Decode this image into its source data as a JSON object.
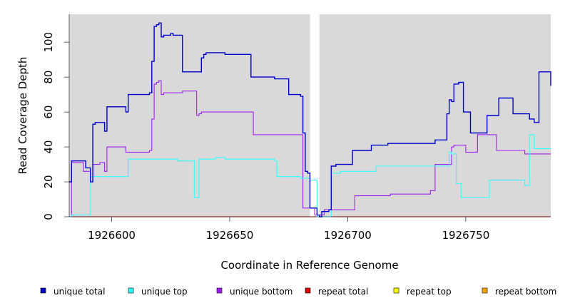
{
  "chart_data": {
    "type": "line",
    "title": "",
    "xlabel": "Coordinate in Reference Genome",
    "ylabel": "Read Coverage Depth",
    "xlim": [
      1926582,
      1926786
    ],
    "ylim": [
      0,
      116
    ],
    "x_ticks": [
      1926600,
      1926650,
      1926700,
      1926750
    ],
    "y_ticks": [
      0,
      20,
      40,
      60,
      80,
      100
    ],
    "grid": false,
    "background": "#d9d9d9",
    "gap_region": [
      1926684,
      1926688
    ],
    "legend_position": "bottom",
    "series": [
      {
        "name": "unique total",
        "color": "#0000cc",
        "step": true,
        "x": [
          1926582,
          1926583,
          1926589,
          1926591,
          1926592,
          1926593,
          1926597,
          1926598,
          1926606,
          1926607,
          1926616,
          1926617,
          1926618,
          1926619,
          1926620,
          1926621,
          1926622,
          1926625,
          1926626,
          1926630,
          1926638,
          1926639,
          1926640,
          1926648,
          1926652,
          1926659,
          1926664,
          1926668,
          1926669,
          1926675,
          1926680,
          1926681,
          1926682,
          1926683,
          1926684,
          1926687,
          1926688,
          1926689,
          1926692,
          1926693,
          1926695,
          1926702,
          1926710,
          1926717,
          1926728,
          1926735,
          1926737,
          1926742,
          1926743,
          1926744,
          1926745,
          1926747,
          1926749,
          1926752,
          1926759,
          1926764,
          1926770,
          1926772,
          1926777,
          1926779,
          1926781,
          1926786
        ],
        "y": [
          20,
          32,
          28,
          20,
          53,
          54,
          49,
          63,
          60,
          70,
          71,
          89,
          109,
          110,
          111,
          103,
          104,
          105,
          104,
          83,
          91,
          93,
          94,
          93,
          93,
          80,
          80,
          80,
          79,
          70,
          69,
          48,
          26,
          25,
          5,
          1,
          0,
          3,
          4,
          29,
          30,
          38,
          41,
          42,
          42,
          42,
          44,
          59,
          67,
          66,
          76,
          77,
          60,
          48,
          58,
          68,
          59,
          59,
          56,
          54,
          83,
          75
        ]
      },
      {
        "name": "unique top",
        "color": "#33ffff",
        "step": true,
        "x": [
          1926582,
          1926583,
          1926590,
          1926591,
          1926598,
          1926606,
          1926607,
          1926610,
          1926620,
          1926625,
          1926626,
          1926628,
          1926635,
          1926636,
          1926637,
          1926644,
          1926648,
          1926660,
          1926667,
          1926669,
          1926670,
          1926675,
          1926680,
          1926684,
          1926687,
          1926688,
          1926692,
          1926693,
          1926697,
          1926702,
          1926712,
          1926720,
          1926730,
          1926742,
          1926743,
          1926744,
          1926746,
          1926748,
          1926758,
          1926760,
          1926763,
          1926770,
          1926775,
          1926777,
          1926779,
          1926786
        ],
        "y": [
          0,
          1,
          1,
          23,
          23,
          23,
          33,
          33,
          33,
          33,
          33,
          32,
          11,
          11,
          33,
          34,
          33,
          33,
          33,
          32,
          23,
          23,
          22,
          21,
          0,
          0,
          0,
          25,
          26,
          26,
          29,
          29,
          29,
          29,
          37,
          36,
          19,
          11,
          11,
          21,
          21,
          21,
          18,
          47,
          39,
          39
        ]
      },
      {
        "name": "unique bottom",
        "color": "#a020f0",
        "step": true,
        "x": [
          1926582,
          1926583,
          1926588,
          1926591,
          1926592,
          1926595,
          1926597,
          1926598,
          1926606,
          1926613,
          1926616,
          1926617,
          1926618,
          1926619,
          1926620,
          1926621,
          1926622,
          1926625,
          1926630,
          1926636,
          1926637,
          1926638,
          1926640,
          1926650,
          1926660,
          1926670,
          1926680,
          1926681,
          1926684,
          1926686,
          1926688,
          1926690,
          1926703,
          1926710,
          1926718,
          1926725,
          1926735,
          1926737,
          1926742,
          1926744,
          1926745,
          1926748,
          1926750,
          1926755,
          1926763,
          1926770,
          1926775,
          1926780,
          1926786
        ],
        "y": [
          0,
          31,
          26,
          20,
          30,
          31,
          26,
          40,
          37,
          37,
          38,
          56,
          76,
          77,
          78,
          70,
          71,
          71,
          72,
          58,
          59,
          60,
          60,
          60,
          47,
          47,
          47,
          5,
          5,
          1,
          1,
          4,
          12,
          12,
          13,
          13,
          15,
          30,
          30,
          40,
          41,
          41,
          37,
          47,
          38,
          38,
          36,
          36,
          36
        ]
      },
      {
        "name": "repeat total",
        "color": "#dd0000",
        "step": true,
        "x": [
          1926582,
          1926786
        ],
        "y": [
          0,
          0
        ]
      },
      {
        "name": "repeat top",
        "color": "#ffff00",
        "step": true,
        "x": [
          1926582,
          1926786
        ],
        "y": [
          0,
          0
        ]
      },
      {
        "name": "repeat bottom",
        "color": "#ffa500",
        "step": true,
        "x": [
          1926582,
          1926786
        ],
        "y": [
          0,
          0
        ]
      }
    ]
  }
}
